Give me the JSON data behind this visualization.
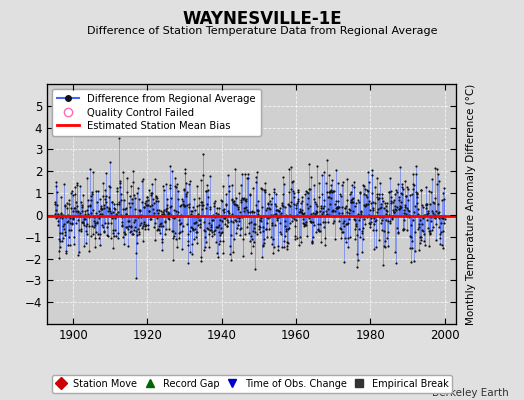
{
  "title": "WAYNESVILLE-1E",
  "subtitle": "Difference of Station Temperature Data from Regional Average",
  "ylabel": "Monthly Temperature Anomaly Difference (°C)",
  "xlabel_ticks": [
    1900,
    1920,
    1940,
    1960,
    1980,
    2000
  ],
  "ylim": [
    -5,
    6
  ],
  "yticks": [
    -4,
    -3,
    -2,
    -1,
    0,
    1,
    2,
    3,
    4,
    5
  ],
  "ytick_labels": [
    "-4",
    "-3",
    "-2",
    "-1",
    "0",
    "1",
    "2",
    "3",
    "4",
    "5"
  ],
  "xlim": [
    1893,
    2003
  ],
  "year_start": 1895,
  "year_end": 2000,
  "bias": -0.05,
  "background_color": "#e0e0e0",
  "plot_bg_color": "#d0d0d0",
  "line_color": "#4466ff",
  "dot_color": "#111111",
  "bias_color": "#ff0000",
  "qc_color": "#ff69b4",
  "move_color": "#cc0000",
  "gap_color": "#006600",
  "tobs_color": "#0000cc",
  "break_color": "#333333",
  "seed": 42,
  "legend_top_labels": [
    "Difference from Regional Average",
    "Quality Control Failed",
    "Estimated Station Mean Bias"
  ],
  "legend_bot_labels": [
    "Station Move",
    "Record Gap",
    "Time of Obs. Change",
    "Empirical Break"
  ],
  "watermark": "Berkeley Earth"
}
